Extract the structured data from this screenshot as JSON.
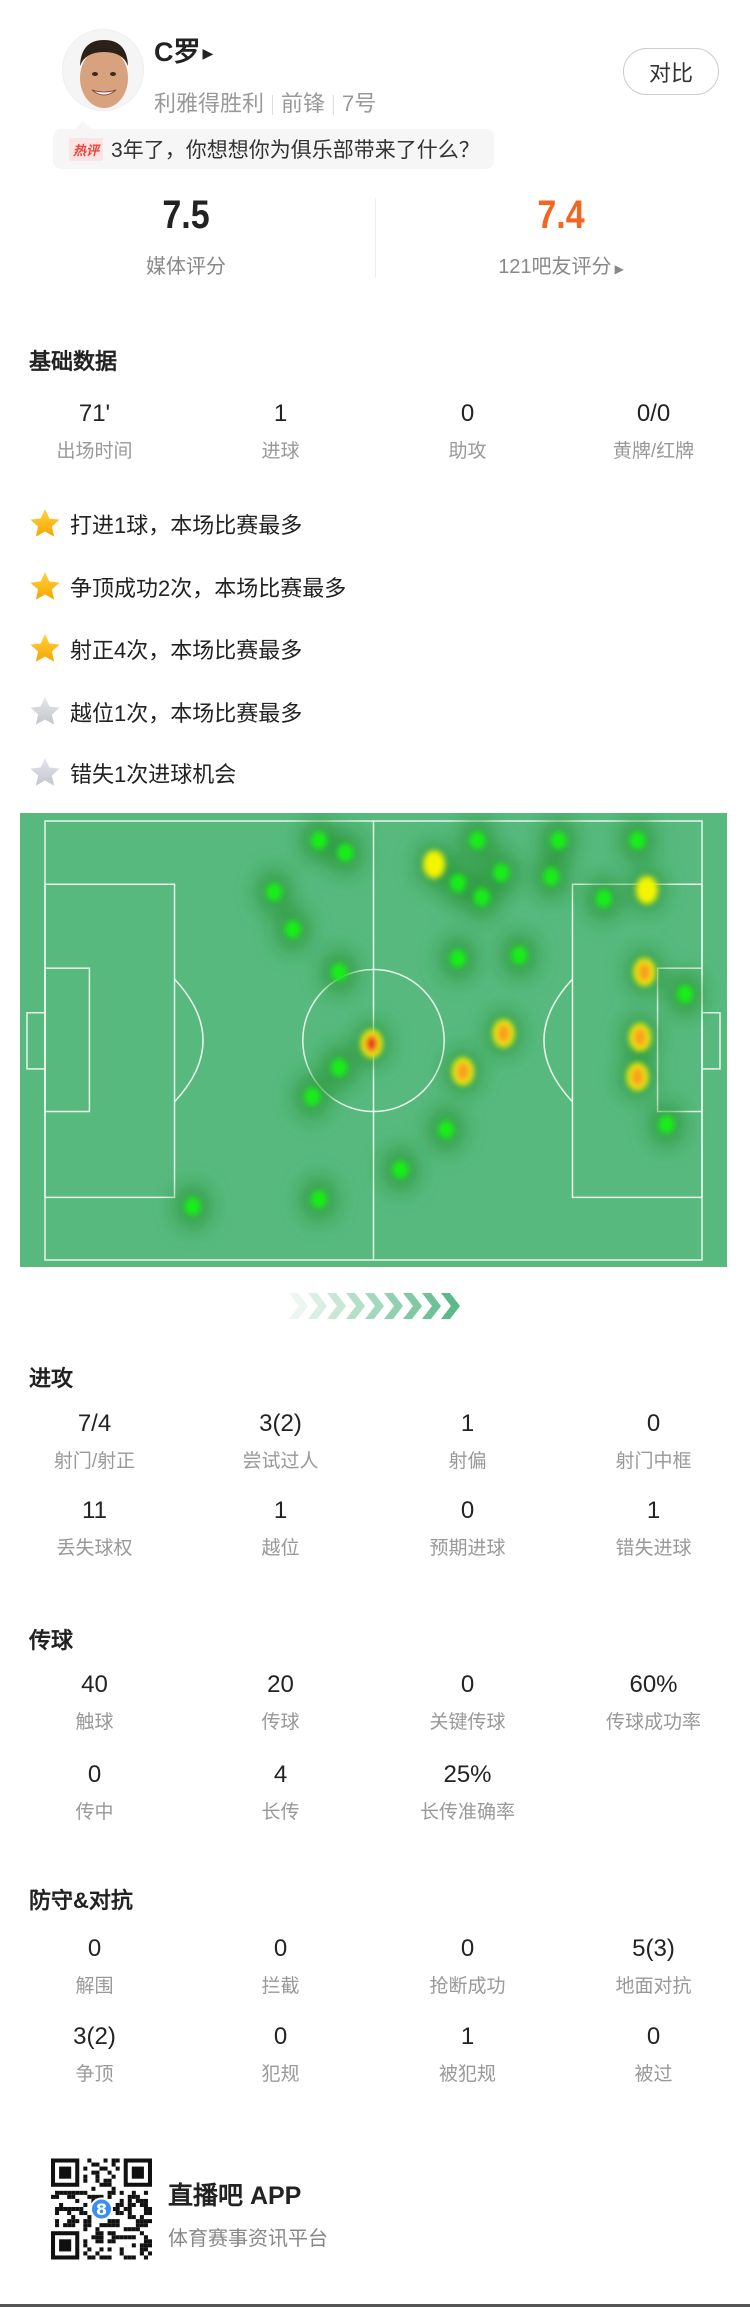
{
  "player": {
    "name": "C罗",
    "club": "利雅得胜利",
    "position": "前锋",
    "number": "7号",
    "compare_label": "对比"
  },
  "hot_comment": {
    "tag": "热评",
    "text": "3年了，你想想你为俱乐部带来了什么？"
  },
  "ratings": {
    "media_score": "7.5",
    "media_label": "媒体评分",
    "fan_score": "7.4",
    "fan_label": "121吧友评分",
    "fan_color": "#f26522"
  },
  "basic": {
    "title": "基础数据",
    "stats": [
      {
        "value": "71'",
        "label": "出场时间"
      },
      {
        "value": "1",
        "label": "进球"
      },
      {
        "value": "0",
        "label": "助攻"
      },
      {
        "value": "0/0",
        "label": "黄牌/红牌"
      }
    ]
  },
  "highlights": [
    {
      "text": "打进1球，本场比赛最多",
      "star": "gold"
    },
    {
      "text": "争顶成功2次，本场比赛最多",
      "star": "gold"
    },
    {
      "text": "射正4次，本场比赛最多",
      "star": "gold"
    },
    {
      "text": "越位1次，本场比赛最多",
      "star": "gray"
    },
    {
      "text": "错失1次进球机会",
      "star": "gray"
    }
  ],
  "heatmap": {
    "pitch_color": "#57b97e",
    "pitch_length_m": 105,
    "pitch_width_m": 68,
    "attack_direction": "right",
    "points": [
      {
        "x": 43.8,
        "y": 3.0,
        "i": 0.35
      },
      {
        "x": 48.0,
        "y": 4.9,
        "i": 0.35
      },
      {
        "x": 36.6,
        "y": 11.0,
        "i": 0.3
      },
      {
        "x": 39.6,
        "y": 16.8,
        "i": 0.3
      },
      {
        "x": 47.0,
        "y": 23.4,
        "i": 0.3
      },
      {
        "x": 52.2,
        "y": 34.5,
        "i": 1.0
      },
      {
        "x": 47.0,
        "y": 38.2,
        "i": 0.3
      },
      {
        "x": 42.7,
        "y": 42.7,
        "i": 0.3
      },
      {
        "x": 62.2,
        "y": 6.7,
        "i": 0.65
      },
      {
        "x": 69.1,
        "y": 3.0,
        "i": 0.3
      },
      {
        "x": 66.0,
        "y": 9.6,
        "i": 0.45
      },
      {
        "x": 69.8,
        "y": 11.8,
        "i": 0.45
      },
      {
        "x": 72.9,
        "y": 8.0,
        "i": 0.45
      },
      {
        "x": 82.1,
        "y": 3.0,
        "i": 0.3
      },
      {
        "x": 80.9,
        "y": 8.6,
        "i": 0.3
      },
      {
        "x": 94.7,
        "y": 3.0,
        "i": 0.3
      },
      {
        "x": 89.3,
        "y": 12.0,
        "i": 0.3
      },
      {
        "x": 96.2,
        "y": 10.7,
        "i": 0.65
      },
      {
        "x": 66.0,
        "y": 21.3,
        "i": 0.3
      },
      {
        "x": 75.8,
        "y": 20.8,
        "i": 0.3
      },
      {
        "x": 95.8,
        "y": 23.4,
        "i": 0.8
      },
      {
        "x": 102.3,
        "y": 26.8,
        "i": 0.3
      },
      {
        "x": 73.3,
        "y": 32.9,
        "i": 0.85
      },
      {
        "x": 66.8,
        "y": 38.8,
        "i": 0.75
      },
      {
        "x": 95.1,
        "y": 33.5,
        "i": 0.8
      },
      {
        "x": 94.7,
        "y": 39.6,
        "i": 0.8
      },
      {
        "x": 99.3,
        "y": 47.0,
        "i": 0.3
      },
      {
        "x": 64.1,
        "y": 47.8,
        "i": 0.3
      },
      {
        "x": 56.8,
        "y": 54.0,
        "i": 0.3
      },
      {
        "x": 43.8,
        "y": 58.6,
        "i": 0.3
      },
      {
        "x": 23.6,
        "y": 59.7,
        "i": 0.3
      }
    ]
  },
  "attack": {
    "title": "进攻",
    "stats": [
      {
        "value": "7/4",
        "label": "射门/射正"
      },
      {
        "value": "3(2)",
        "label": "尝试过人"
      },
      {
        "value": "1",
        "label": "射偏"
      },
      {
        "value": "0",
        "label": "射门中框"
      },
      {
        "value": "11",
        "label": "丢失球权"
      },
      {
        "value": "1",
        "label": "越位"
      },
      {
        "value": "0",
        "label": "预期进球"
      },
      {
        "value": "1",
        "label": "错失进球"
      }
    ]
  },
  "passing": {
    "title": "传球",
    "stats": [
      {
        "value": "40",
        "label": "触球"
      },
      {
        "value": "20",
        "label": "传球"
      },
      {
        "value": "0",
        "label": "关键传球"
      },
      {
        "value": "60%",
        "label": "传球成功率"
      },
      {
        "value": "0",
        "label": "传中"
      },
      {
        "value": "4",
        "label": "长传"
      },
      {
        "value": "25%",
        "label": "长传准确率"
      }
    ]
  },
  "defense": {
    "title": "防守&对抗",
    "stats": [
      {
        "value": "0",
        "label": "解围"
      },
      {
        "value": "0",
        "label": "拦截"
      },
      {
        "value": "0",
        "label": "抢断成功"
      },
      {
        "value": "5(3)",
        "label": "地面对抗"
      },
      {
        "value": "3(2)",
        "label": "争顶"
      },
      {
        "value": "0",
        "label": "犯规"
      },
      {
        "value": "1",
        "label": "被犯规"
      },
      {
        "value": "0",
        "label": "被过"
      }
    ]
  },
  "footer": {
    "app_name": "直播吧 APP",
    "tagline": "体育赛事资讯平台",
    "qr_badge": "8"
  }
}
